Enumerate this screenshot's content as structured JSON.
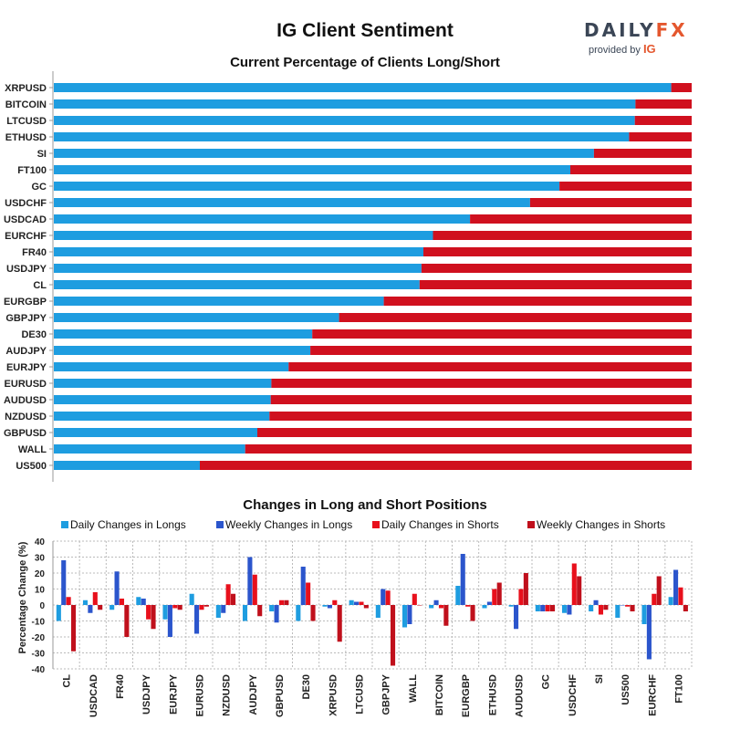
{
  "header": {
    "title": "IG Client Sentiment",
    "logo_word_main": "DAILY",
    "logo_word_accent": "FX",
    "logo_provided_by": "provided by",
    "logo_brand": "IG"
  },
  "colors": {
    "long": "#1e9de0",
    "short": "#d0101e",
    "daily_longs": "#1e9de0",
    "weekly_longs": "#2b55cc",
    "daily_shorts": "#e8101c",
    "weekly_shorts": "#c0101c",
    "grid": "#bbbbbb"
  },
  "chart_data": [
    {
      "type": "bar",
      "orientation": "horizontal",
      "stacked": true,
      "title": "Current Percentage of Clients Long/Short",
      "categories": [
        "XRPUSD",
        "BITCOIN",
        "LTCUSD",
        "ETHUSD",
        "SI",
        "FT100",
        "GC",
        "USDCHF",
        "USDCAD",
        "EURCHF",
        "FR40",
        "USDJPY",
        "CL",
        "EURGBP",
        "GBPJPY",
        "DE30",
        "AUDJPY",
        "EURJPY",
        "EURUSD",
        "AUDUSD",
        "NZDUSD",
        "GBPUSD",
        "WALL",
        "US500"
      ],
      "series": [
        {
          "key": "long",
          "values": [
            96.8,
            91.2,
            91.1,
            90.2,
            84.7,
            81.0,
            79.3,
            74.7,
            65.3,
            59.5,
            58.0,
            57.7,
            57.4,
            51.8,
            44.8,
            40.6,
            40.3,
            36.9,
            34.2,
            34.1,
            33.9,
            32.0,
            30.1,
            23.0
          ]
        },
        {
          "key": "short",
          "values": [
            3.2,
            8.8,
            8.9,
            9.8,
            15.3,
            19.0,
            20.7,
            25.3,
            34.7,
            40.5,
            42.0,
            42.3,
            42.6,
            48.2,
            55.2,
            59.4,
            59.7,
            63.1,
            65.8,
            65.9,
            66.1,
            68.0,
            69.9,
            77.0
          ]
        }
      ],
      "xlim": [
        0,
        100
      ],
      "grid": false,
      "legend": false
    },
    {
      "type": "bar",
      "title": "Changes in Long and Short Positions",
      "ylabel": "Percentage Change (%)",
      "ylim": [
        -40,
        40
      ],
      "yticks": [
        40,
        30,
        20,
        10,
        0,
        -10,
        -20,
        -30,
        -40
      ],
      "grid": true,
      "legend": "top",
      "categories": [
        "CL",
        "USDCAD",
        "FR40",
        "USDJPY",
        "EURJPY",
        "EURUSD",
        "NZDUSD",
        "AUDJPY",
        "GBPUSD",
        "DE30",
        "XRPUSD",
        "LTCUSD",
        "GBPJPY",
        "WALL",
        "BITCOIN",
        "EURGBP",
        "ETHUSD",
        "AUDUSD",
        "GC",
        "USDCHF",
        "SI",
        "US500",
        "EURCHF",
        "FT100"
      ],
      "series": [
        {
          "name": "Daily Changes in Longs",
          "values": [
            -10,
            3,
            -3,
            5,
            -9,
            7,
            -8,
            -10,
            -4,
            -10,
            -1,
            3,
            -8,
            -14,
            -2,
            12,
            -2,
            -1,
            -4,
            -5,
            -4,
            -8,
            -12,
            5
          ]
        },
        {
          "name": "Weekly Changes in Longs",
          "values": [
            28,
            -5,
            21,
            4,
            -20,
            -18,
            -5,
            30,
            -11,
            24,
            -2,
            2,
            10,
            -12,
            3,
            32,
            2,
            -15,
            -4,
            -6,
            3,
            0,
            -34,
            22
          ]
        },
        {
          "name": "Daily Changes in Shorts",
          "values": [
            5,
            8,
            4,
            -9,
            -2,
            -3,
            13,
            19,
            3,
            14,
            3,
            2,
            9,
            7,
            -2,
            -1,
            10,
            10,
            -4,
            26,
            -6,
            -1,
            7,
            11
          ]
        },
        {
          "name": "Weekly Changes in Shorts",
          "values": [
            -29,
            -3,
            -20,
            -15,
            -3,
            -1,
            7,
            -7,
            3,
            -10,
            -23,
            -2,
            -38,
            0,
            -13,
            -10,
            14,
            20,
            -4,
            18,
            -3,
            -4,
            18,
            -4
          ]
        }
      ]
    }
  ]
}
